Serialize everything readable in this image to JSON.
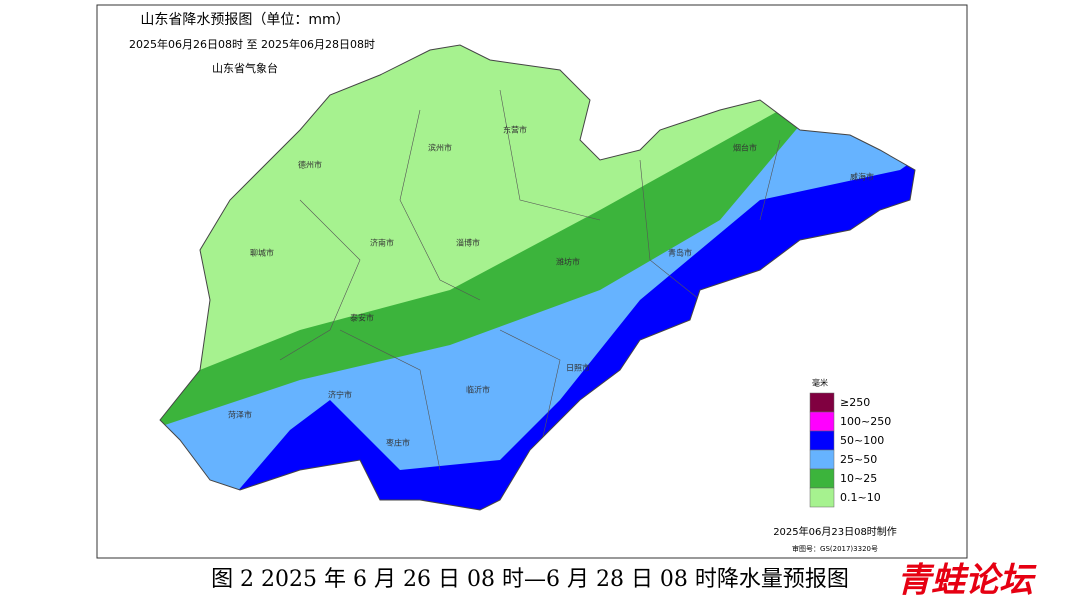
{
  "map": {
    "title": "山东省降水预报图（单位：mm）",
    "period": "2025年06月26日08时  至  2025年06月28日08时",
    "issuer": "山东省气象台",
    "cities": [
      "德州市",
      "滨州市",
      "东营市",
      "烟台市",
      "威海市",
      "聊城市",
      "济南市",
      "淄博市",
      "潍坊市",
      "青岛市",
      "泰安市",
      "菏泽市",
      "济宁市",
      "临沂市",
      "日照市",
      "枣庄市"
    ],
    "legend": {
      "title": "毫米",
      "items": [
        {
          "label": "≥250",
          "color": "#800040"
        },
        {
          "label": "100~250",
          "color": "#ff00ff"
        },
        {
          "label": "50~100",
          "color": "#0000ff"
        },
        {
          "label": "25~50",
          "color": "#66b3ff"
        },
        {
          "label": "10~25",
          "color": "#3cb43c"
        },
        {
          "label": "0.1~10",
          "color": "#a6f28f"
        }
      ]
    },
    "made": "2025年06月23日08时制作",
    "approval": "审图号：GS(2017)3320号"
  },
  "caption": "图 2 2025 年 6 月 26 日 08 时—6 月 28 日 08 时降水量预报图",
  "watermark": "青蛙论坛"
}
